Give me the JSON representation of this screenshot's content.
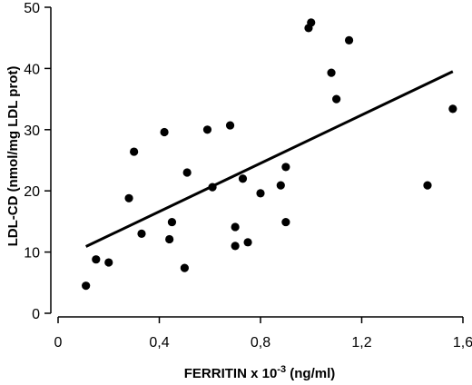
{
  "chart_data": {
    "type": "scatter",
    "xlabel": "FERRITIN x 10",
    "xlabel_sup": "-3",
    "xlabel_unit": " (ng/ml)",
    "ylabel": "LDL-CD (nmol/mg LDL prot)",
    "xlim": [
      0,
      1.6
    ],
    "ylim": [
      0,
      50
    ],
    "x_ticks": [
      0,
      0.4,
      0.8,
      1.2,
      1.6
    ],
    "x_tick_labels": [
      "0",
      "0,4",
      "0,8",
      "1,2",
      "1,6"
    ],
    "y_ticks": [
      0,
      10,
      20,
      30,
      40,
      50
    ],
    "y_tick_labels": [
      "0",
      "10",
      "20",
      "30",
      "40",
      "50"
    ],
    "grid": false,
    "points": [
      {
        "x": 0.11,
        "y": 4.5
      },
      {
        "x": 0.15,
        "y": 8.8
      },
      {
        "x": 0.2,
        "y": 8.3
      },
      {
        "x": 0.28,
        "y": 18.8
      },
      {
        "x": 0.3,
        "y": 26.4
      },
      {
        "x": 0.33,
        "y": 13.0
      },
      {
        "x": 0.42,
        "y": 29.6
      },
      {
        "x": 0.44,
        "y": 12.1
      },
      {
        "x": 0.45,
        "y": 14.9
      },
      {
        "x": 0.5,
        "y": 7.4
      },
      {
        "x": 0.51,
        "y": 23.0
      },
      {
        "x": 0.59,
        "y": 30.0
      },
      {
        "x": 0.61,
        "y": 20.6
      },
      {
        "x": 0.68,
        "y": 30.7
      },
      {
        "x": 0.7,
        "y": 14.1
      },
      {
        "x": 0.7,
        "y": 11.0
      },
      {
        "x": 0.73,
        "y": 22.0
      },
      {
        "x": 0.75,
        "y": 11.6
      },
      {
        "x": 0.8,
        "y": 19.6
      },
      {
        "x": 0.88,
        "y": 20.9
      },
      {
        "x": 0.9,
        "y": 23.9
      },
      {
        "x": 0.9,
        "y": 14.9
      },
      {
        "x": 0.99,
        "y": 46.6
      },
      {
        "x": 1.0,
        "y": 47.5
      },
      {
        "x": 1.08,
        "y": 39.3
      },
      {
        "x": 1.1,
        "y": 35.0
      },
      {
        "x": 1.15,
        "y": 44.6
      },
      {
        "x": 1.46,
        "y": 20.9
      },
      {
        "x": 1.56,
        "y": 33.4
      }
    ],
    "trend_line": {
      "x": [
        0.11,
        1.56
      ],
      "y": [
        10.9,
        39.5
      ]
    }
  }
}
